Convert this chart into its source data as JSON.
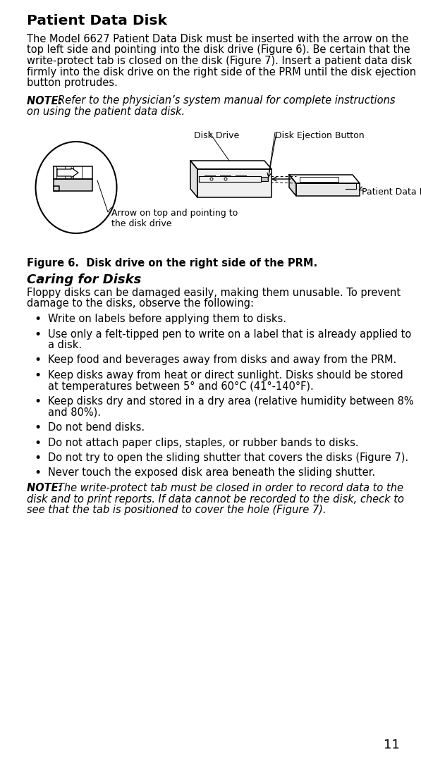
{
  "page_number": "11",
  "title": "Patient Data Disk",
  "body_text_lines": [
    "The Model 6627 Patient Data Disk must be inserted with the arrow on the",
    "top left side and pointing into the disk drive (Figure 6). Be certain that the",
    "write-protect tab is closed on the disk (Figure 7). Insert a patient data disk",
    "firmly into the disk drive on the right side of the PRM until the disk ejection",
    "button protrudes."
  ],
  "note1_bold": "NOTE:  ",
  "note1_rest": "Refer to the physician’s system manual for complete instructions",
  "note1_line2": "on using the patient data disk.",
  "figure_label": "Figure 6.  Disk drive on the right side of the PRM.",
  "section_title": "Caring for Disks",
  "section_body_lines": [
    "Floppy disks can be damaged easily, making them unusable. To prevent",
    "damage to the disks, observe the following:"
  ],
  "bullets": [
    [
      "Write on labels before applying them to disks."
    ],
    [
      "Use only a felt-tipped pen to write on a label that is already applied to",
      "a disk."
    ],
    [
      "Keep food and beverages away from disks and away from the PRM."
    ],
    [
      "Keep disks away from heat or direct sunlight. Disks should be stored",
      "at temperatures between 5° and 60°C (41°-140°F)."
    ],
    [
      "Keep disks dry and stored in a dry area (relative humidity between 8%",
      "and 80%)."
    ],
    [
      "Do not bend disks."
    ],
    [
      "Do not attach paper clips, staples, or rubber bands to disks."
    ],
    [
      "Do not try to open the sliding shutter that covers the disks (Figure 7)."
    ],
    [
      "Never touch the exposed disk area beneath the sliding shutter."
    ]
  ],
  "note2_bold": "NOTE:  ",
  "note2_rest": "The write-protect tab must be closed in order to record data to the",
  "note2_line2": "disk and to print reports. If data cannot be recorded to the disk, check to",
  "note2_line3": "see that the tab is positioned to cover the hole (Figure 7).",
  "fig_label_disk_drive": "Disk Drive",
  "fig_label_disk_ejection": "Disk Ejection Button",
  "fig_label_patient_disk": "Patient Data Disk",
  "fig_label_arrow": "Arrow on top and pointing to\nthe disk drive",
  "bg_color": "#ffffff",
  "text_color": "#000000"
}
